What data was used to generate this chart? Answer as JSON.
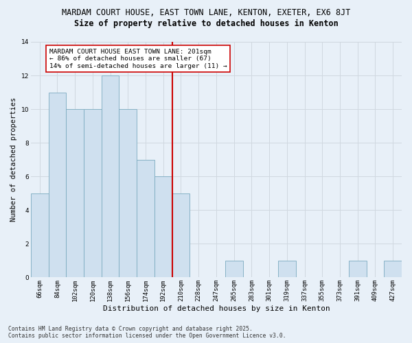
{
  "title": "MARDAM COURT HOUSE, EAST TOWN LANE, KENTON, EXETER, EX6 8JT",
  "subtitle": "Size of property relative to detached houses in Kenton",
  "xlabel": "Distribution of detached houses by size in Kenton",
  "ylabel": "Number of detached properties",
  "bins": [
    "66sqm",
    "84sqm",
    "102sqm",
    "120sqm",
    "138sqm",
    "156sqm",
    "174sqm",
    "192sqm",
    "210sqm",
    "228sqm",
    "247sqm",
    "265sqm",
    "283sqm",
    "301sqm",
    "319sqm",
    "337sqm",
    "355sqm",
    "373sqm",
    "391sqm",
    "409sqm",
    "427sqm"
  ],
  "values": [
    5,
    11,
    10,
    10,
    12,
    10,
    7,
    6,
    5,
    0,
    0,
    1,
    0,
    0,
    1,
    0,
    0,
    0,
    1,
    0,
    1
  ],
  "bar_color": "#cfe0ef",
  "bar_edge_color": "#7aaabf",
  "grid_color": "#d0d8e0",
  "vline_color": "#cc0000",
  "annotation_text": "MARDAM COURT HOUSE EAST TOWN LANE: 201sqm\n← 86% of detached houses are smaller (67)\n14% of semi-detached houses are larger (11) →",
  "annotation_box_color": "#ffffff",
  "annotation_box_edge": "#cc0000",
  "footer1": "Contains HM Land Registry data © Crown copyright and database right 2025.",
  "footer2": "Contains public sector information licensed under the Open Government Licence v3.0.",
  "bg_color": "#e8f0f8",
  "ylim": [
    0,
    14
  ],
  "yticks": [
    0,
    2,
    4,
    6,
    8,
    10,
    12,
    14
  ],
  "title_fontsize": 8.5,
  "subtitle_fontsize": 8.5,
  "tick_fontsize": 6.5,
  "ylabel_fontsize": 7.5,
  "xlabel_fontsize": 8,
  "annot_fontsize": 6.8,
  "footer_fontsize": 5.8
}
